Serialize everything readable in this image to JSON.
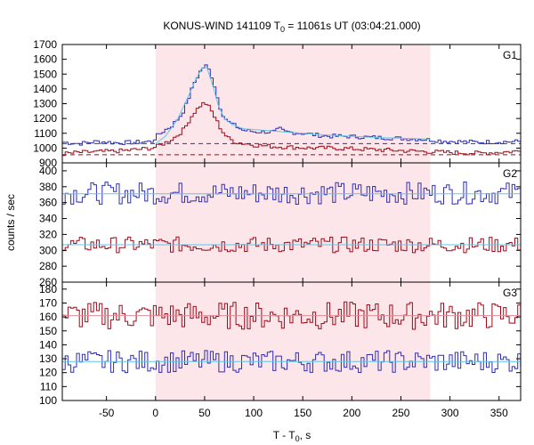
{
  "title_prefix": "KONUS-WIND 141109 T",
  "title_sub": "0",
  "title_suffix": " = 11061s UT (03:04:21.000)",
  "xlabel_prefix": "T - T",
  "xlabel_sub": "0",
  "xlabel_suffix": ", s",
  "ylabel": "counts / sec",
  "colors": {
    "blue": "#2e2eb4",
    "red": "#9e0a1a",
    "fit": "#5ac8e6",
    "fit_red": "#e08c96",
    "shade": "#fde6ea"
  },
  "chart_data": {
    "type": "line",
    "style": "step",
    "xlim": [
      -95,
      372
    ],
    "x_ticks": [
      -50,
      0,
      50,
      100,
      150,
      200,
      250,
      300,
      350
    ],
    "shaded_interval": [
      0,
      280
    ],
    "grid": false,
    "panels": [
      {
        "name": "G1",
        "ylim": [
          900,
          1700
        ],
        "y_ticks": [
          900,
          1000,
          1100,
          1200,
          1300,
          1400,
          1500,
          1600,
          1700
        ],
        "series": [
          {
            "color": "blue",
            "background": 1030,
            "points": [
              [
                -95,
                1040
              ],
              [
                -80,
                1030
              ],
              [
                -60,
                1045
              ],
              [
                -40,
                1035
              ],
              [
                -20,
                1040
              ],
              [
                -5,
                1045
              ],
              [
                0,
                1080
              ],
              [
                8,
                1120
              ],
              [
                15,
                1150
              ],
              [
                22,
                1200
              ],
              [
                28,
                1260
              ],
              [
                33,
                1350
              ],
              [
                38,
                1440
              ],
              [
                42,
                1490
              ],
              [
                46,
                1540
              ],
              [
                50,
                1555
              ],
              [
                54,
                1520
              ],
              [
                58,
                1440
              ],
              [
                62,
                1330
              ],
              [
                66,
                1240
              ],
              [
                72,
                1180
              ],
              [
                80,
                1150
              ],
              [
                88,
                1120
              ],
              [
                95,
                1115
              ],
              [
                100,
                1110
              ],
              [
                110,
                1110
              ],
              [
                120,
                1110
              ],
              [
                125,
                1130
              ],
              [
                130,
                1110
              ],
              [
                140,
                1105
              ],
              [
                150,
                1100
              ],
              [
                160,
                1090
              ],
              [
                175,
                1080
              ],
              [
                190,
                1080
              ],
              [
                210,
                1075
              ],
              [
                230,
                1070
              ],
              [
                250,
                1065
              ],
              [
                270,
                1060
              ],
              [
                280,
                1055
              ],
              [
                300,
                1045
              ],
              [
                330,
                1040
              ],
              [
                372,
                1045
              ]
            ]
          },
          {
            "color": "red",
            "background": 955,
            "points": [
              [
                -95,
                960
              ],
              [
                -80,
                970
              ],
              [
                -60,
                975
              ],
              [
                -40,
                980
              ],
              [
                -20,
                990
              ],
              [
                -5,
                1000
              ],
              [
                0,
                1010
              ],
              [
                10,
                1040
              ],
              [
                20,
                1080
              ],
              [
                28,
                1130
              ],
              [
                34,
                1200
              ],
              [
                38,
                1240
              ],
              [
                42,
                1270
              ],
              [
                46,
                1300
              ],
              [
                50,
                1300
              ],
              [
                54,
                1270
              ],
              [
                58,
                1220
              ],
              [
                62,
                1170
              ],
              [
                66,
                1120
              ],
              [
                72,
                1070
              ],
              [
                80,
                1040
              ],
              [
                90,
                1030
              ],
              [
                100,
                1020
              ],
              [
                120,
                1010
              ],
              [
                140,
                1005
              ],
              [
                160,
                1000
              ],
              [
                180,
                1000
              ],
              [
                200,
                995
              ],
              [
                220,
                990
              ],
              [
                240,
                985
              ],
              [
                260,
                980
              ],
              [
                280,
                975
              ],
              [
                300,
                970
              ],
              [
                330,
                965
              ],
              [
                372,
                980
              ]
            ]
          }
        ],
        "fit_lines": [
          {
            "color": "fit",
            "points": [
              [
                0,
                1030
              ],
              [
                10,
                1080
              ],
              [
                22,
                1190
              ],
              [
                32,
                1330
              ],
              [
                40,
                1450
              ],
              [
                47,
                1540
              ],
              [
                52,
                1550
              ],
              [
                58,
                1430
              ],
              [
                64,
                1290
              ],
              [
                70,
                1200
              ],
              [
                78,
                1160
              ],
              [
                90,
                1130
              ],
              [
                110,
                1120
              ],
              [
                130,
                1110
              ],
              [
                150,
                1100
              ],
              [
                170,
                1090
              ],
              [
                200,
                1080
              ],
              [
                230,
                1070
              ],
              [
                260,
                1065
              ],
              [
                280,
                1060
              ]
            ]
          }
        ]
      },
      {
        "name": "G2",
        "ylim": [
          260,
          410
        ],
        "y_ticks": [
          260,
          280,
          300,
          320,
          340,
          360,
          380,
          400
        ],
        "series": [
          {
            "color": "blue",
            "mean": 372,
            "amplitude": 14
          },
          {
            "color": "red",
            "mean": 307,
            "amplitude": 10
          }
        ],
        "fit_lines": [
          {
            "color": "fit",
            "points": [
              [
                -95,
                371
              ],
              [
                372,
                371
              ]
            ]
          },
          {
            "color": "fit",
            "points": [
              [
                -95,
                307
              ],
              [
                372,
                307
              ]
            ]
          }
        ]
      },
      {
        "name": "G3",
        "ylim": [
          100,
          185
        ],
        "y_ticks": [
          100,
          110,
          120,
          130,
          140,
          150,
          160,
          170,
          180
        ],
        "series": [
          {
            "color": "red",
            "mean": 161,
            "amplitude": 10
          },
          {
            "color": "blue",
            "mean": 128,
            "amplitude": 8
          }
        ],
        "fit_lines": [
          {
            "color": "fit_red",
            "points": [
              [
                -95,
                161
              ],
              [
                372,
                161
              ]
            ]
          },
          {
            "color": "fit",
            "points": [
              [
                -95,
                128
              ],
              [
                372,
                128
              ]
            ]
          }
        ]
      }
    ]
  }
}
